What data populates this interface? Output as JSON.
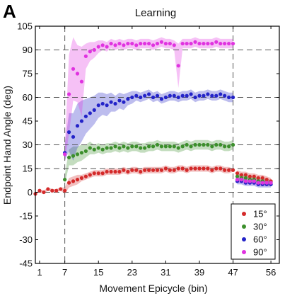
{
  "chart_data": {
    "type": "scatter",
    "panel_label": "A",
    "title": "Learning",
    "xlabel": "Movement Epicycle (bin)",
    "ylabel": "Endpoint Hand Angle (deg)",
    "xlim": [
      0,
      58
    ],
    "ylim": [
      -45,
      105
    ],
    "xticks": [
      1,
      7,
      15,
      23,
      31,
      39,
      47,
      56
    ],
    "yticks": [
      -45,
      -30,
      -15,
      0,
      15,
      30,
      45,
      60,
      75,
      90,
      105
    ],
    "reference_lines": {
      "horizontal": [
        0,
        15,
        30,
        60,
        90
      ],
      "vertical": [
        7,
        47
      ]
    },
    "grid": false,
    "legend_position": "bottom-right",
    "series": [
      {
        "name": "15°",
        "color": "#d42a2a",
        "x": [
          0,
          1,
          2,
          3,
          4,
          5,
          6,
          7,
          8,
          9,
          10,
          11,
          12,
          13,
          14,
          15,
          16,
          17,
          18,
          19,
          20,
          21,
          22,
          23,
          24,
          25,
          26,
          27,
          28,
          29,
          30,
          31,
          32,
          33,
          34,
          35,
          36,
          37,
          38,
          39,
          40,
          41,
          42,
          43,
          44,
          45,
          46,
          47,
          48,
          49,
          50,
          51,
          52,
          53,
          54,
          55,
          56
        ],
        "y": [
          -1,
          1,
          0,
          2,
          1,
          1,
          2,
          1,
          6,
          7,
          8,
          9,
          10,
          11,
          12,
          12,
          12,
          13,
          13,
          13,
          13,
          14,
          13,
          14,
          14,
          13,
          14,
          14,
          14,
          14,
          14,
          15,
          14,
          14,
          15,
          15,
          14,
          15,
          15,
          15,
          15,
          15,
          14,
          15,
          15,
          14,
          14,
          14,
          12,
          11,
          11,
          10,
          10,
          9,
          9,
          8,
          7
        ],
        "band": [
          0,
          1,
          1,
          1,
          1,
          1,
          1,
          2,
          3,
          3,
          3,
          2,
          2,
          2,
          2,
          2,
          2,
          2,
          2,
          2,
          2,
          2,
          2,
          2,
          2,
          2,
          2,
          2,
          2,
          2,
          2,
          2,
          2,
          2,
          2,
          2,
          2,
          2,
          2,
          2,
          2,
          2,
          2,
          2,
          2,
          2,
          2,
          1,
          2,
          2,
          2,
          2,
          2,
          2,
          2,
          2,
          2
        ]
      },
      {
        "name": "30°",
        "color": "#3c8f2c",
        "x": [
          7,
          8,
          9,
          10,
          11,
          12,
          13,
          14,
          15,
          16,
          17,
          18,
          19,
          20,
          21,
          22,
          23,
          24,
          25,
          26,
          27,
          28,
          29,
          30,
          31,
          32,
          33,
          34,
          35,
          36,
          37,
          38,
          39,
          40,
          41,
          42,
          43,
          44,
          45,
          46,
          47,
          48,
          49,
          50,
          51,
          52,
          53,
          54,
          55,
          56
        ],
        "y": [
          8,
          22,
          23,
          24,
          25,
          26,
          28,
          27,
          28,
          27,
          28,
          28,
          29,
          28,
          29,
          28,
          29,
          29,
          28,
          28,
          29,
          29,
          30,
          29,
          29,
          29,
          29,
          28,
          29,
          30,
          29,
          30,
          30,
          30,
          30,
          29,
          30,
          30,
          29,
          29,
          30,
          10,
          9,
          9,
          8,
          8,
          7,
          7,
          6,
          6
        ],
        "band": [
          3,
          5,
          6,
          5,
          5,
          4,
          4,
          3,
          3,
          3,
          3,
          3,
          3,
          3,
          3,
          3,
          3,
          3,
          3,
          3,
          3,
          3,
          3,
          3,
          3,
          3,
          3,
          3,
          3,
          3,
          3,
          3,
          3,
          3,
          3,
          3,
          3,
          3,
          3,
          3,
          3,
          2,
          2,
          2,
          2,
          2,
          2,
          2,
          2,
          2
        ]
      },
      {
        "name": "60°",
        "color": "#2323c8",
        "x": [
          7,
          8,
          9,
          10,
          11,
          12,
          13,
          14,
          15,
          16,
          17,
          18,
          19,
          20,
          21,
          22,
          23,
          24,
          25,
          26,
          27,
          28,
          29,
          30,
          31,
          32,
          33,
          34,
          35,
          36,
          37,
          38,
          39,
          40,
          41,
          42,
          43,
          44,
          45,
          46,
          47,
          48,
          49,
          50,
          51,
          52,
          53,
          54,
          55,
          56
        ],
        "y": [
          25,
          38,
          35,
          42,
          45,
          48,
          50,
          52,
          55,
          56,
          55,
          57,
          56,
          58,
          57,
          59,
          60,
          61,
          60,
          61,
          62,
          60,
          61,
          59,
          60,
          61,
          61,
          60,
          61,
          61,
          62,
          60,
          61,
          61,
          62,
          61,
          61,
          62,
          61,
          60,
          60,
          7,
          7,
          6,
          6,
          6,
          5,
          5,
          5,
          5
        ],
        "band": [
          5,
          12,
          15,
          14,
          13,
          11,
          10,
          9,
          8,
          7,
          7,
          6,
          5,
          5,
          5,
          4,
          4,
          3,
          3,
          3,
          3,
          3,
          3,
          3,
          3,
          3,
          3,
          3,
          3,
          3,
          3,
          3,
          3,
          3,
          3,
          3,
          3,
          3,
          3,
          3,
          3,
          2,
          2,
          2,
          2,
          2,
          2,
          2,
          2,
          2
        ]
      },
      {
        "name": "90°",
        "color": "#e033e0",
        "x": [
          7,
          8,
          9,
          10,
          11,
          12,
          13,
          14,
          15,
          16,
          17,
          18,
          19,
          20,
          21,
          22,
          23,
          24,
          25,
          26,
          27,
          28,
          29,
          30,
          31,
          32,
          33,
          34,
          35,
          36,
          37,
          38,
          39,
          40,
          41,
          42,
          43,
          44,
          45,
          46,
          47,
          48,
          49,
          50,
          51,
          52,
          53,
          54,
          55,
          56
        ],
        "y": [
          24,
          62,
          78,
          75,
          70,
          86,
          89,
          90,
          92,
          93,
          92,
          94,
          93,
          94,
          93,
          94,
          94,
          93,
          94,
          94,
          94,
          93,
          94,
          95,
          94,
          94,
          93,
          80,
          94,
          94,
          94,
          95,
          94,
          94,
          94,
          94,
          95,
          94,
          94,
          94,
          94,
          8,
          8,
          7,
          7,
          7,
          6,
          6,
          6,
          6
        ],
        "band": [
          5,
          25,
          20,
          18,
          22,
          8,
          6,
          5,
          4,
          3,
          3,
          3,
          3,
          3,
          3,
          3,
          3,
          3,
          3,
          3,
          3,
          3,
          3,
          3,
          3,
          3,
          3,
          14,
          3,
          3,
          3,
          3,
          3,
          3,
          3,
          3,
          3,
          3,
          3,
          3,
          3,
          2,
          2,
          2,
          2,
          2,
          2,
          2,
          2,
          2
        ]
      }
    ]
  }
}
